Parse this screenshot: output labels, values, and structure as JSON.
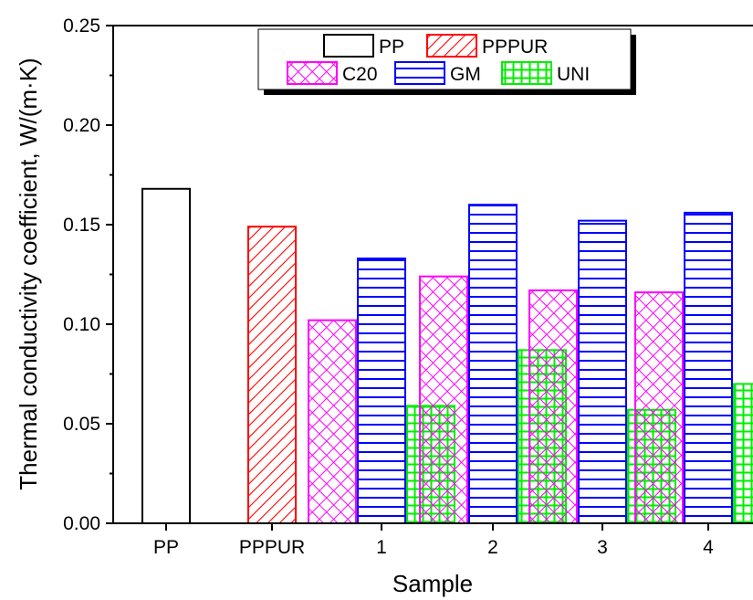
{
  "chart_data": {
    "type": "bar",
    "xlabel": "Sample",
    "ylabel": "Thermal conductivity coefficient, W/(m·K)",
    "ylim": [
      0,
      0.25
    ],
    "yticks": [
      "0.00",
      "0.05",
      "0.10",
      "0.15",
      "0.20",
      "0.25"
    ],
    "categories": [
      "PP",
      "PPPUR",
      "1",
      "2",
      "3",
      "4"
    ],
    "series": [
      {
        "name": "PP",
        "color": "#000000",
        "pattern": "none",
        "values": [
          0.168,
          null,
          null,
          null,
          null,
          null
        ]
      },
      {
        "name": "PPPUR",
        "color": "#ff0000",
        "pattern": "diagonal",
        "values": [
          null,
          0.149,
          null,
          null,
          null,
          null
        ]
      },
      {
        "name": "C20",
        "color": "#ff00ff",
        "pattern": "crosshatch",
        "values": [
          null,
          null,
          0.102,
          0.124,
          0.117,
          0.116
        ]
      },
      {
        "name": "GM",
        "color": "#0000ff",
        "pattern": "horizontal",
        "values": [
          null,
          null,
          0.133,
          0.16,
          0.152,
          0.156
        ]
      },
      {
        "name": "UNI",
        "color": "#00ee00",
        "pattern": "grid",
        "values": [
          null,
          null,
          0.059,
          0.087,
          0.057,
          0.07
        ]
      }
    ],
    "legend": {
      "placement": "top-center",
      "rows": [
        [
          "PP",
          "PPPUR"
        ],
        [
          "C20",
          "GM",
          "UNI"
        ]
      ]
    }
  }
}
